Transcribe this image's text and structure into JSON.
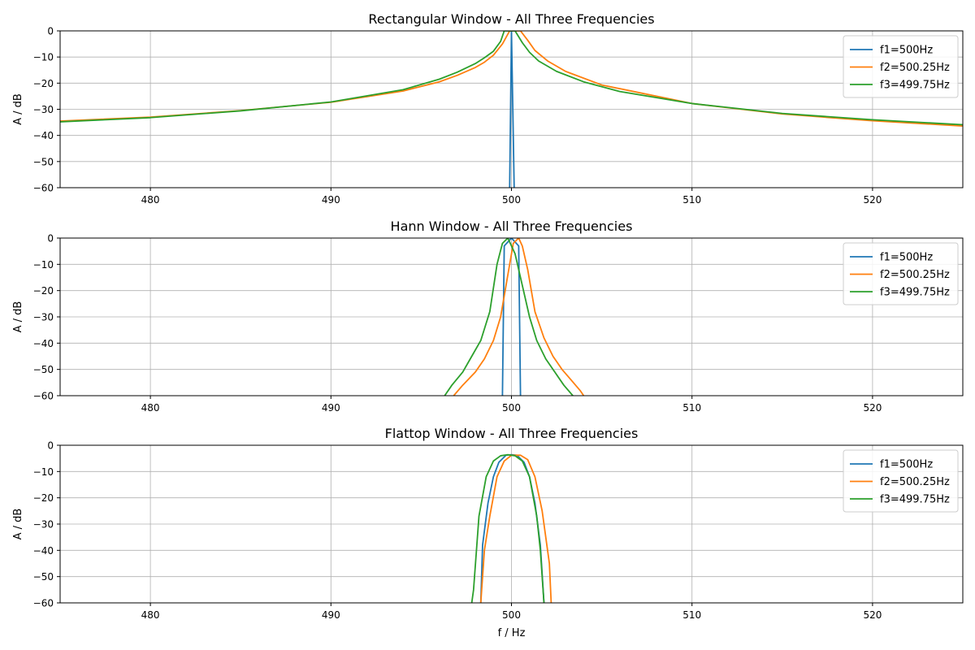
{
  "figure": {
    "xlabel": "f / Hz"
  },
  "chart_data": [
    {
      "type": "line",
      "title": "Rectangular Window - All Three Frequencies",
      "xlabel": "",
      "ylabel": "A / dB",
      "xlim": [
        475,
        525
      ],
      "ylim": [
        -60,
        0
      ],
      "xticks": [
        480,
        490,
        500,
        510,
        520
      ],
      "yticks": [
        0,
        -10,
        -20,
        -30,
        -40,
        -50,
        -60
      ],
      "grid": true,
      "legend_position": "top-right",
      "series": [
        {
          "name": "f1=500Hz",
          "color": "#1f77b4",
          "points": [
            [
              499.9,
              -60
            ],
            [
              500.0,
              0
            ],
            [
              500.15,
              -60
            ]
          ]
        },
        {
          "name": "f2=500.25Hz",
          "color": "#ff7f0e",
          "points": [
            [
              475,
              -34.5
            ],
            [
              480,
              -33
            ],
            [
              485,
              -30.5
            ],
            [
              490,
              -27.3
            ],
            [
              494,
              -23
            ],
            [
              496,
              -19.5
            ],
            [
              497,
              -17
            ],
            [
              498,
              -14
            ],
            [
              498.5,
              -12
            ],
            [
              499,
              -9.3
            ],
            [
              499.5,
              -5
            ],
            [
              499.9,
              0
            ],
            [
              500.5,
              0
            ],
            [
              500.9,
              -3.6
            ],
            [
              501.3,
              -7.5
            ],
            [
              502,
              -11.5
            ],
            [
              503,
              -15.5
            ],
            [
              505,
              -20.7
            ],
            [
              510,
              -27.8
            ],
            [
              515,
              -31.8
            ],
            [
              520,
              -34.4
            ],
            [
              525,
              -36.4
            ]
          ]
        },
        {
          "name": "f3=499.75Hz",
          "color": "#2ca02c",
          "points": [
            [
              475,
              -34.8
            ],
            [
              480,
              -33.2
            ],
            [
              485,
              -30.6
            ],
            [
              490,
              -27.2
            ],
            [
              494,
              -22.5
            ],
            [
              496,
              -18.5
            ],
            [
              497,
              -15.8
            ],
            [
              498,
              -12.5
            ],
            [
              498.5,
              -10.3
            ],
            [
              499,
              -7.8
            ],
            [
              499.4,
              -4
            ],
            [
              499.6,
              0
            ],
            [
              500.2,
              0
            ],
            [
              500.6,
              -4.5
            ],
            [
              501,
              -8.2
            ],
            [
              501.5,
              -11.5
            ],
            [
              502.5,
              -15.5
            ],
            [
              504,
              -19.5
            ],
            [
              506,
              -23.2
            ],
            [
              510,
              -27.8
            ],
            [
              515,
              -31.6
            ],
            [
              520,
              -34
            ],
            [
              525,
              -35.9
            ]
          ]
        }
      ]
    },
    {
      "type": "line",
      "title": "Hann Window - All Three Frequencies",
      "xlabel": "",
      "ylabel": "A / dB",
      "xlim": [
        475,
        525
      ],
      "ylim": [
        -60,
        0
      ],
      "xticks": [
        480,
        490,
        500,
        510,
        520
      ],
      "yticks": [
        0,
        -10,
        -20,
        -30,
        -40,
        -50,
        -60
      ],
      "grid": true,
      "legend_position": "top-right",
      "series": [
        {
          "name": "f1=500Hz",
          "color": "#1f77b4",
          "points": [
            [
              499.5,
              -60
            ],
            [
              499.6,
              -3
            ],
            [
              500.0,
              0
            ],
            [
              500.4,
              -3
            ],
            [
              500.5,
              -60
            ]
          ]
        },
        {
          "name": "f2=500.25Hz",
          "color": "#ff7f0e",
          "points": [
            [
              496.8,
              -60
            ],
            [
              497.3,
              -56
            ],
            [
              498,
              -51
            ],
            [
              498.5,
              -46
            ],
            [
              499,
              -39
            ],
            [
              499.4,
              -30
            ],
            [
              499.8,
              -14
            ],
            [
              500.1,
              -2
            ],
            [
              500.4,
              0
            ],
            [
              500.6,
              -3
            ],
            [
              500.9,
              -12
            ],
            [
              501.3,
              -28
            ],
            [
              501.8,
              -38
            ],
            [
              502.3,
              -45
            ],
            [
              502.8,
              -50
            ],
            [
              503.3,
              -54
            ],
            [
              503.8,
              -58
            ],
            [
              504,
              -60
            ]
          ]
        },
        {
          "name": "f3=499.75Hz",
          "color": "#2ca02c",
          "points": [
            [
              496.3,
              -60
            ],
            [
              496.7,
              -56
            ],
            [
              497.3,
              -51
            ],
            [
              497.8,
              -45
            ],
            [
              498.3,
              -39
            ],
            [
              498.8,
              -28
            ],
            [
              499.2,
              -10
            ],
            [
              499.5,
              -2
            ],
            [
              499.8,
              0
            ],
            [
              500.2,
              -6
            ],
            [
              500.6,
              -18
            ],
            [
              501,
              -30
            ],
            [
              501.4,
              -39
            ],
            [
              501.9,
              -46
            ],
            [
              502.4,
              -51
            ],
            [
              502.9,
              -56
            ],
            [
              503.4,
              -60
            ]
          ]
        }
      ]
    },
    {
      "type": "line",
      "title": "Flattop Window - All Three Frequencies",
      "xlabel": "f / Hz",
      "ylabel": "A / dB",
      "xlim": [
        475,
        525
      ],
      "ylim": [
        -60,
        0
      ],
      "xticks": [
        480,
        490,
        500,
        510,
        520
      ],
      "yticks": [
        0,
        -10,
        -20,
        -30,
        -40,
        -50,
        -60
      ],
      "grid": true,
      "legend_position": "top-right",
      "series": [
        {
          "name": "f1=500Hz",
          "color": "#1f77b4",
          "points": [
            [
              498.3,
              -60
            ],
            [
              498.4,
              -38
            ],
            [
              498.7,
              -22
            ],
            [
              499,
              -12
            ],
            [
              499.3,
              -6.5
            ],
            [
              499.7,
              -3.8
            ],
            [
              500,
              -3.6
            ],
            [
              500.3,
              -3.8
            ],
            [
              500.7,
              -6.5
            ],
            [
              501,
              -12
            ],
            [
              501.3,
              -22
            ],
            [
              501.6,
              -38
            ],
            [
              501.8,
              -60
            ]
          ]
        },
        {
          "name": "f2=500.25Hz",
          "color": "#ff7f0e",
          "points": [
            [
              498.3,
              -60
            ],
            [
              498.5,
              -40
            ],
            [
              498.8,
              -27
            ],
            [
              499.2,
              -12
            ],
            [
              499.6,
              -6
            ],
            [
              500,
              -3.8
            ],
            [
              500.5,
              -3.8
            ],
            [
              500.9,
              -5.5
            ],
            [
              501.3,
              -12
            ],
            [
              501.7,
              -25
            ],
            [
              502.1,
              -45
            ],
            [
              502.2,
              -60
            ]
          ]
        },
        {
          "name": "f3=499.75Hz",
          "color": "#2ca02c",
          "points": [
            [
              497.8,
              -60
            ],
            [
              497.9,
              -55
            ],
            [
              498.2,
              -27
            ],
            [
              498.6,
              -12
            ],
            [
              499,
              -6
            ],
            [
              499.4,
              -4
            ],
            [
              499.8,
              -3.6
            ],
            [
              500.2,
              -4
            ],
            [
              500.6,
              -6
            ],
            [
              501,
              -12
            ],
            [
              501.4,
              -27
            ],
            [
              501.6,
              -40
            ],
            [
              501.8,
              -60
            ]
          ]
        }
      ]
    }
  ]
}
